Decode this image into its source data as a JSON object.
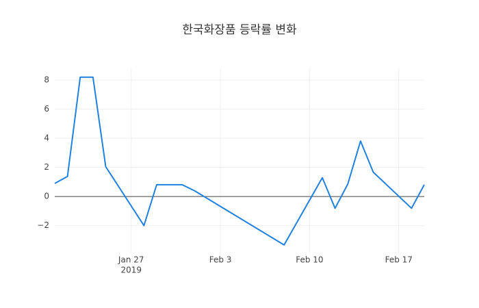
{
  "chart_data": {
    "type": "line",
    "title": "한국화장품 등락률 변화",
    "x": [
      "2019-01-21",
      "2019-01-22",
      "2019-01-23",
      "2019-01-24",
      "2019-01-25",
      "2019-01-28",
      "2019-01-29",
      "2019-01-31",
      "2019-02-01",
      "2019-02-08",
      "2019-02-11",
      "2019-02-12",
      "2019-02-13",
      "2019-02-14",
      "2019-02-15",
      "2019-02-18",
      "2019-02-19"
    ],
    "series": [
      {
        "color": "#1f80e0",
        "values": [
          0.9,
          1.38,
          8.2,
          8.2,
          2.05,
          -2.0,
          0.81,
          0.81,
          0.38,
          -3.33,
          1.29,
          -0.81,
          0.86,
          3.81,
          1.67,
          -0.81,
          0.81
        ]
      }
    ],
    "xlim": [
      "2019-01-21",
      "2019-02-19"
    ],
    "xticks": [
      {
        "value": "2019-01-27",
        "label": "Jan 27"
      },
      {
        "value": "2019-02-03",
        "label": "Feb 3"
      },
      {
        "value": "2019-02-10",
        "label": "Feb 10"
      },
      {
        "value": "2019-02-17",
        "label": "Feb 17"
      }
    ],
    "x_year": "2019",
    "ylim": [
      -3.9,
      8.8
    ],
    "yticks": [
      {
        "value": -2,
        "label": "−2"
      },
      0,
      2,
      4,
      6,
      8
    ],
    "grid": true,
    "zeroline": true
  }
}
